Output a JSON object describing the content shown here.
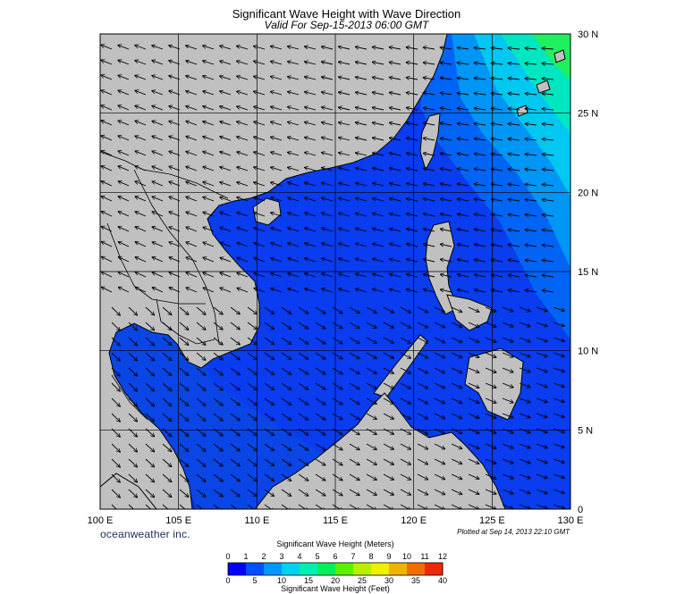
{
  "header": {
    "title": "Significant Wave Height with Wave Direction",
    "subtitle": "Valid For Sep-15-2013 06:00 GMT"
  },
  "map": {
    "lon_range": [
      100,
      130
    ],
    "lat_range": [
      0,
      30
    ],
    "lon_ticks": [
      {
        "value": 100,
        "label": "100 E"
      },
      {
        "value": 105,
        "label": "105 E"
      },
      {
        "value": 110,
        "label": "110 E"
      },
      {
        "value": 115,
        "label": "115 E"
      },
      {
        "value": 120,
        "label": "120 E"
      },
      {
        "value": 125,
        "label": "125 E"
      },
      {
        "value": 130,
        "label": "130 E"
      }
    ],
    "lat_ticks": [
      {
        "value": 30,
        "label": "30 N"
      },
      {
        "value": 25,
        "label": "25 N"
      },
      {
        "value": 20,
        "label": "20 N"
      },
      {
        "value": 15,
        "label": "15 N"
      },
      {
        "value": 10,
        "label": "10 N"
      },
      {
        "value": 5,
        "label": "5 N"
      },
      {
        "value": 0,
        "label": "0"
      }
    ],
    "land_color": "#c0c0c0",
    "grid": true
  },
  "footer": {
    "brand": "oceanweather inc.",
    "plotted": "Plotted at Sep 14, 2013 22:10 GMT"
  },
  "colorbar": {
    "title_top": "Significant Wave Height (Meters)",
    "title_bottom": "Significant Wave Height (Feet)",
    "meter_labels": [
      "0",
      "1",
      "2",
      "3",
      "4",
      "5",
      "6",
      "7",
      "8",
      "9",
      "10",
      "11",
      "12"
    ],
    "feet_labels": [
      "0",
      "5",
      "10",
      "15",
      "20",
      "25",
      "30",
      "35",
      "40"
    ],
    "colors": [
      "#0000ff",
      "#0050ff",
      "#0096ff",
      "#00d2f0",
      "#00f0b4",
      "#00f05a",
      "#5af000",
      "#b4f000",
      "#f0f000",
      "#f0b400",
      "#f06e00",
      "#f02800"
    ]
  }
}
